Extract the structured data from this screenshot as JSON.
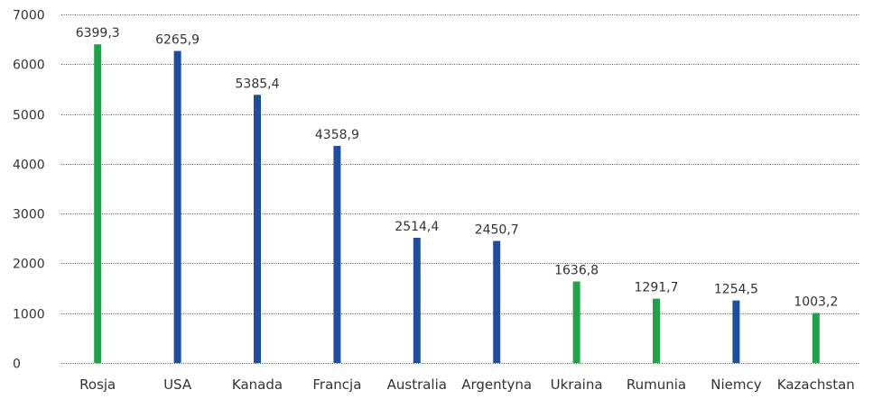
{
  "chart_data": {
    "type": "bar",
    "categories": [
      "Rosja",
      "USA",
      "Kanada",
      "Francja",
      "Australia",
      "Argentyna",
      "Ukraina",
      "Rumunia",
      "Niemcy",
      "Kazachstan"
    ],
    "values": [
      6399.3,
      6265.9,
      5385.4,
      4358.9,
      2514.4,
      2450.7,
      1636.8,
      1291.7,
      1254.5,
      1003.2
    ],
    "value_labels": [
      "6399,3",
      "6265,9",
      "5385,4",
      "4358,9",
      "2514,4",
      "2450,7",
      "1636,8",
      "1291,7",
      "1254,5",
      "1003,2"
    ],
    "bar_colors": [
      "#23a14a",
      "#1f4e9c",
      "#1f4e9c",
      "#1f4e9c",
      "#1f4e9c",
      "#1f4e9c",
      "#23a14a",
      "#23a14a",
      "#1f4e9c",
      "#23a14a"
    ],
    "yticks": [
      0,
      1000,
      2000,
      3000,
      4000,
      5000,
      6000,
      7000
    ],
    "ytick_labels": [
      "0",
      "1000",
      "2000",
      "3000",
      "4000",
      "5000",
      "6000",
      "7000"
    ],
    "ylim": [
      0,
      7000
    ],
    "grid": true,
    "title": "",
    "xlabel": "",
    "ylabel": ""
  },
  "colors": {
    "green": "#23a14a",
    "blue": "#1f4e9c",
    "text": "#333333",
    "grid": "#555555"
  }
}
